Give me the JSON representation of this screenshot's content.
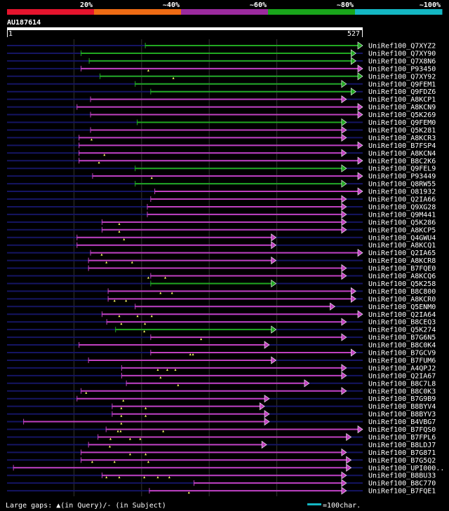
{
  "chart_data": {
    "type": "alignment-overview",
    "query_id": "AU187614",
    "query_start": 1,
    "query_end": 527,
    "query_start_label": "1",
    "query_end_label": "527",
    "identity_legend": [
      {
        "label": "20%",
        "color": "#e5142d"
      },
      {
        "label": "~40%",
        "color": "#ee6b14"
      },
      {
        "label": "~60%",
        "color": "#9b2a9e"
      },
      {
        "label": "~80%",
        "color": "#19a51b"
      },
      {
        "label": "~100%",
        "color": "#14b7c3"
      }
    ],
    "bar_colors": {
      "magenta": "#c040c0",
      "green": "#21a821",
      "dark": "#151563"
    },
    "gridlines": [
      100,
      200,
      300,
      400
    ],
    "hits": [
      {
        "name": "UniRef100_Q7XYZ2",
        "s": 205,
        "e": 527,
        "c": "g",
        "m": []
      },
      {
        "name": "UniRef100_Q7XY90",
        "s": 110,
        "e": 517,
        "c": "g",
        "m": []
      },
      {
        "name": "UniRef100_Q7X8N6",
        "s": 122,
        "e": 517,
        "c": "g",
        "m": []
      },
      {
        "name": "UniRef100_P93450",
        "s": 110,
        "e": 527,
        "c": "m",
        "m": [
          210
        ]
      },
      {
        "name": "UniRef100_Q7XY92",
        "s": 138,
        "e": 527,
        "c": "g",
        "m": [
          247
        ]
      },
      {
        "name": "UniRef100_Q9FEM1",
        "s": 190,
        "e": 503,
        "c": "g",
        "m": []
      },
      {
        "name": "UniRef100_Q9FDZ6",
        "s": 213,
        "e": 517,
        "c": "g",
        "m": []
      },
      {
        "name": "UniRef100_A8KCP1",
        "s": 124,
        "e": 503,
        "c": "m",
        "m": []
      },
      {
        "name": "UniRef100_A8KCN9",
        "s": 104,
        "e": 527,
        "c": "m",
        "m": []
      },
      {
        "name": "UniRef100_Q5K269",
        "s": 124,
        "e": 527,
        "c": "m",
        "m": []
      },
      {
        "name": "UniRef100_Q9FEM0",
        "s": 193,
        "e": 503,
        "c": "g",
        "m": []
      },
      {
        "name": "UniRef100_Q5K281",
        "s": 124,
        "e": 503,
        "c": "m",
        "m": []
      },
      {
        "name": "UniRef100_A8KCR3",
        "s": 107,
        "e": 503,
        "c": "m",
        "m": [
          126
        ]
      },
      {
        "name": "UniRef100_B7FSP4",
        "s": 107,
        "e": 527,
        "c": "m",
        "m": []
      },
      {
        "name": "UniRef100_A8KCN4",
        "s": 107,
        "e": 503,
        "c": "m",
        "m": [
          145
        ]
      },
      {
        "name": "UniRef100_B8C2K6",
        "s": 107,
        "e": 527,
        "c": "m",
        "m": [
          137
        ]
      },
      {
        "name": "UniRef100_Q9FEL9",
        "s": 190,
        "e": 503,
        "c": "g",
        "m": []
      },
      {
        "name": "UniRef100_P93449",
        "s": 127,
        "e": 527,
        "c": "m",
        "m": [
          215
        ]
      },
      {
        "name": "UniRef100_Q8RW55",
        "s": 190,
        "e": 503,
        "c": "g",
        "m": []
      },
      {
        "name": "UniRef100_O81932",
        "s": 219,
        "e": 527,
        "c": "m",
        "m": []
      },
      {
        "name": "UniRef100_Q2IA66",
        "s": 213,
        "e": 503,
        "c": "m",
        "m": []
      },
      {
        "name": "UniRef100_Q9XG28",
        "s": 208,
        "e": 503,
        "c": "m",
        "m": []
      },
      {
        "name": "UniRef100_Q9M441",
        "s": 208,
        "e": 503,
        "c": "m",
        "m": []
      },
      {
        "name": "UniRef100_Q5K286",
        "s": 141,
        "e": 503,
        "c": "m",
        "m": [
          167
        ]
      },
      {
        "name": "UniRef100_A8KCP5",
        "s": 141,
        "e": 503,
        "c": "m",
        "m": [
          167
        ]
      },
      {
        "name": "UniRef100_Q4GWU4",
        "s": 104,
        "e": 399,
        "c": "m",
        "m": [
          174
        ]
      },
      {
        "name": "UniRef100_A8KCQ1",
        "s": 104,
        "e": 399,
        "c": "m",
        "m": []
      },
      {
        "name": "UniRef100_Q2IA65",
        "s": 124,
        "e": 527,
        "c": "m",
        "m": [
          141
        ]
      },
      {
        "name": "UniRef100_A8KCR8",
        "s": 121,
        "e": 399,
        "c": "m",
        "m": [
          148,
          186
        ]
      },
      {
        "name": "UniRef100_B7FQE0",
        "s": 121,
        "e": 503,
        "c": "m",
        "m": []
      },
      {
        "name": "UniRef100_A8KCQ6",
        "s": 213,
        "e": 503,
        "c": "m",
        "m": [
          210,
          235
        ]
      },
      {
        "name": "UniRef100_Q5K258",
        "s": 213,
        "e": 399,
        "c": "g",
        "m": []
      },
      {
        "name": "UniRef100_B8C800",
        "s": 150,
        "e": 517,
        "c": "m",
        "m": [
          228,
          245
        ]
      },
      {
        "name": "UniRef100_A8KCR0",
        "s": 150,
        "e": 517,
        "c": "m",
        "m": [
          160,
          177
        ]
      },
      {
        "name": "UniRef100_Q5ENM0",
        "s": 190,
        "e": 486,
        "c": "m",
        "m": []
      },
      {
        "name": "UniRef100_Q2IA64",
        "s": 141,
        "e": 527,
        "c": "m",
        "m": [
          167,
          194,
          215
        ]
      },
      {
        "name": "UniRef100_B8CEQ3",
        "s": 148,
        "e": 503,
        "c": "m",
        "m": [
          170,
          205
        ]
      },
      {
        "name": "UniRef100_Q5K274",
        "s": 161,
        "e": 399,
        "c": "g",
        "m": [
          204
        ]
      },
      {
        "name": "UniRef100_B7G6N5",
        "s": 213,
        "e": 503,
        "c": "m",
        "m": [
          288
        ]
      },
      {
        "name": "UniRef100_B8C0K4",
        "s": 107,
        "e": 389,
        "c": "m",
        "m": []
      },
      {
        "name": "UniRef100_B7GCV9",
        "s": 213,
        "e": 517,
        "c": "m",
        "m": [
          272,
          276
        ]
      },
      {
        "name": "UniRef100_B7FUM6",
        "s": 121,
        "e": 399,
        "c": "m",
        "m": []
      },
      {
        "name": "UniRef100_A4QPJ2",
        "s": 170,
        "e": 503,
        "c": "m",
        "m": [
          224,
          238,
          250
        ]
      },
      {
        "name": "UniRef100_Q2IA67",
        "s": 170,
        "e": 503,
        "c": "m",
        "m": [
          228
        ]
      },
      {
        "name": "UniRef100_B8C7L8",
        "s": 177,
        "e": 448,
        "c": "m",
        "m": [
          254
        ]
      },
      {
        "name": "UniRef100_B8C0K3",
        "s": 110,
        "e": 503,
        "c": "m",
        "m": [
          118
        ]
      },
      {
        "name": "UniRef100_B7G9B9",
        "s": 104,
        "e": 389,
        "c": "m",
        "m": [
          173
        ]
      },
      {
        "name": "UniRef100_B8BYV4",
        "s": 156,
        "e": 382,
        "c": "m",
        "m": [
          170,
          206
        ]
      },
      {
        "name": "UniRef100_B8BYV3",
        "s": 156,
        "e": 389,
        "c": "m",
        "m": [
          170,
          206
        ]
      },
      {
        "name": "UniRef100_B4VBG7",
        "s": 25,
        "e": 389,
        "c": "m",
        "m": [
          170
        ]
      },
      {
        "name": "UniRef100_B7FQS0",
        "s": 147,
        "e": 527,
        "c": "m",
        "m": [
          165,
          169,
          232
        ]
      },
      {
        "name": "UniRef100_B7FPL6",
        "s": 135,
        "e": 510,
        "c": "m",
        "m": [
          154,
          183,
          198
        ]
      },
      {
        "name": "UniRef100_B8LDJ7",
        "s": 121,
        "e": 385,
        "c": "m",
        "m": [
          153
        ]
      },
      {
        "name": "UniRef100_B7G871",
        "s": 110,
        "e": 503,
        "c": "m",
        "m": [
          183,
          206
        ]
      },
      {
        "name": "UniRef100_B7G5Q2",
        "s": 110,
        "e": 510,
        "c": "m",
        "m": [
          127,
          160,
          210
        ]
      },
      {
        "name": "UniRef100_UPI000..",
        "s": 10,
        "e": 510,
        "c": "m",
        "m": []
      },
      {
        "name": "UniRef100_B8BU33",
        "s": 141,
        "e": 503,
        "c": "m",
        "m": [
          148,
          167,
          204,
          224,
          241
        ]
      },
      {
        "name": "UniRef100_B8C770",
        "s": 277,
        "e": 503,
        "c": "m",
        "m": []
      },
      {
        "name": "UniRef100_B7FQE1",
        "s": 211,
        "e": 503,
        "c": "m",
        "m": [
          270
        ]
      }
    ],
    "footer_gap_label": "Large gaps: ▲(in Query)/- (in Subject)",
    "footer_scale_label": "=100char."
  }
}
